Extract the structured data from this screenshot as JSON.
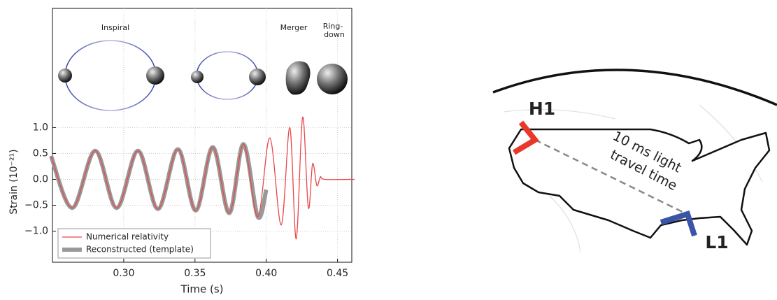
{
  "chart_data": {
    "type": "line",
    "ylabel": "Strain (10⁻²¹)",
    "xlabel": "Time (s)",
    "annotations": [
      [
        "Inspiral"
      ],
      [
        "Merger"
      ],
      [
        "Ring-",
        "down"
      ]
    ],
    "xlim": [
      0.25,
      0.46
    ],
    "ylim": [
      -1.6,
      3.3
    ],
    "xticks": [
      {
        "value": 0.3,
        "label": "0.30"
      },
      {
        "value": 0.35,
        "label": "0.35"
      },
      {
        "value": 0.4,
        "label": "0.40"
      },
      {
        "value": 0.45,
        "label": "0.45"
      }
    ],
    "yticks": [
      {
        "value": 1.0,
        "label": "1.0"
      },
      {
        "value": 0.5,
        "label": "0.5"
      },
      {
        "value": 0,
        "label": "0.0"
      },
      {
        "value": -0.5,
        "label": "−0.5"
      },
      {
        "value": -1.0,
        "label": "−1.0"
      }
    ],
    "grid": true,
    "legend": "lower left",
    "series": [
      {
        "name": "Reconstructed (template)",
        "color": "#999999",
        "width": 6,
        "x": [
          0.249,
          0.264,
          0.28,
          0.295,
          0.31,
          0.324,
          0.338,
          0.3505,
          0.3625,
          0.374,
          0.384,
          0.394,
          0.4
        ],
        "values": [
          0.45,
          -0.55,
          0.55,
          -0.55,
          0.55,
          -0.57,
          0.58,
          -0.6,
          0.62,
          -0.65,
          0.68,
          -0.72,
          -0.2
        ]
      },
      {
        "name": "Numerical relativity",
        "color": "#e8484a",
        "width": 1.3,
        "x": [
          0.249,
          0.264,
          0.28,
          0.295,
          0.31,
          0.324,
          0.338,
          0.3505,
          0.3625,
          0.374,
          0.384,
          0.394,
          0.4025,
          0.4105,
          0.4165,
          0.421,
          0.4255,
          0.4295,
          0.4325,
          0.4355,
          0.438,
          0.441,
          0.462
        ],
        "values": [
          0.45,
          -0.55,
          0.55,
          -0.55,
          0.55,
          -0.57,
          0.58,
          -0.6,
          0.62,
          -0.65,
          0.68,
          -0.72,
          0.8,
          -0.88,
          1.0,
          -1.15,
          1.2,
          -0.55,
          0.3,
          -0.12,
          0.05,
          0,
          0
        ]
      }
    ]
  },
  "map": {
    "detectors": [
      "H1",
      "L1"
    ],
    "travel_label": [
      "10 ms light",
      "travel time"
    ]
  }
}
